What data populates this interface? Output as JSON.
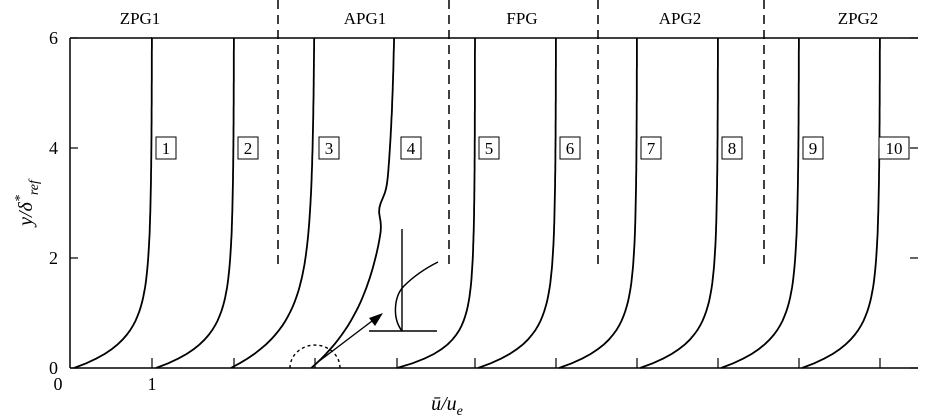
{
  "chart_data": {
    "type": "line",
    "title": "",
    "xlabel": "ū/u",
    "xlabel_sub": "e",
    "ylabel": "y/δ",
    "ylabel_sup": "*",
    "ylabel_sub": "ref",
    "ylim": [
      0,
      6
    ],
    "y_ticks": [
      "0",
      "2",
      "4",
      "6"
    ],
    "x_ticks": [
      "0",
      "1"
    ],
    "grid": false,
    "regions": [
      "ZPG1",
      "APG1",
      "FPG",
      "APG2",
      "ZPG2"
    ],
    "station_labels": [
      "1",
      "2",
      "3",
      "4",
      "5",
      "6",
      "7",
      "8",
      "9",
      "10"
    ],
    "series": [
      {
        "station": "1",
        "profile": "zpg"
      },
      {
        "station": "2",
        "profile": "zpg"
      },
      {
        "station": "3",
        "profile": "apg"
      },
      {
        "station": "4",
        "profile": "separated"
      },
      {
        "station": "5",
        "profile": "recovering"
      },
      {
        "station": "6",
        "profile": "fpg"
      },
      {
        "station": "7",
        "profile": "fpg"
      },
      {
        "station": "8",
        "profile": "fpg"
      },
      {
        "station": "9",
        "profile": "zpg"
      },
      {
        "station": "10",
        "profile": "zpg"
      }
    ]
  }
}
